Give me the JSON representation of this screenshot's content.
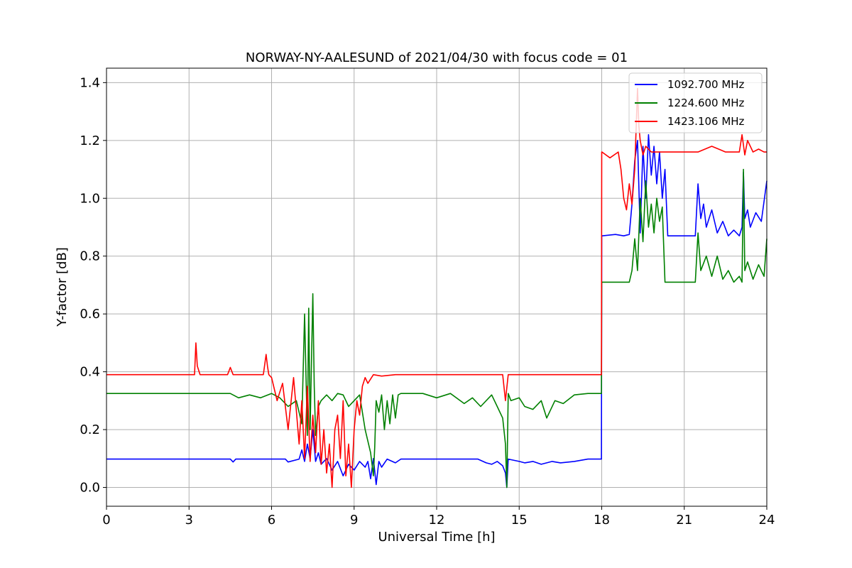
{
  "chart_data": {
    "type": "line",
    "title": "NORWAY-NY-AALESUND of 2021/04/30 with focus code = 01",
    "xlabel": "Universal Time [h]",
    "ylabel": "Y-factor [dB]",
    "xlim": [
      0,
      24
    ],
    "ylim": [
      -0.065,
      1.45
    ],
    "xticks": [
      0,
      3,
      6,
      9,
      12,
      15,
      18,
      21,
      24
    ],
    "xtick_labels": [
      "0",
      "3",
      "6",
      "9",
      "12",
      "15",
      "18",
      "21",
      "24"
    ],
    "yticks": [
      0.0,
      0.2,
      0.4,
      0.6,
      0.8,
      1.0,
      1.2,
      1.4
    ],
    "ytick_labels": [
      "0.0",
      "0.2",
      "0.4",
      "0.6",
      "0.8",
      "1.0",
      "1.2",
      "1.4"
    ],
    "grid": true,
    "legend_position": "top-right",
    "series": [
      {
        "name": "1092.700 MHz",
        "color": "#0000ff",
        "x": [
          0,
          4.5,
          4.6,
          4.7,
          6.5,
          6.6,
          7.0,
          7.1,
          7.2,
          7.3,
          7.4,
          7.5,
          7.6,
          7.7,
          7.8,
          8.0,
          8.2,
          8.4,
          8.6,
          8.8,
          9.0,
          9.2,
          9.4,
          9.5,
          9.6,
          9.7,
          9.8,
          9.9,
          10.0,
          10.2,
          10.5,
          10.7,
          11.5,
          12.0,
          13.5,
          13.8,
          14.0,
          14.2,
          14.4,
          14.5,
          14.55,
          14.6,
          15.0,
          15.2,
          15.5,
          15.8,
          16.2,
          16.5,
          17.0,
          17.5,
          17.99,
          18.0,
          18.01,
          18.5,
          18.8,
          19.0,
          19.1,
          19.2,
          19.3,
          19.4,
          19.5,
          19.6,
          19.7,
          19.8,
          19.9,
          20.0,
          20.1,
          20.2,
          20.3,
          20.4,
          20.6,
          21.0,
          21.4,
          21.5,
          21.6,
          21.7,
          21.8,
          22.0,
          22.2,
          22.4,
          22.6,
          22.8,
          23.0,
          23.1,
          23.15,
          23.2,
          23.3,
          23.4,
          23.6,
          23.8,
          24.0
        ],
        "y": [
          0.098,
          0.098,
          0.088,
          0.098,
          0.098,
          0.088,
          0.098,
          0.13,
          0.09,
          0.15,
          0.1,
          0.2,
          0.09,
          0.12,
          0.08,
          0.1,
          0.06,
          0.09,
          0.04,
          0.08,
          0.06,
          0.09,
          0.07,
          0.09,
          0.03,
          0.1,
          0.01,
          0.09,
          0.07,
          0.098,
          0.085,
          0.098,
          0.098,
          0.098,
          0.098,
          0.085,
          0.08,
          0.09,
          0.075,
          0.05,
          0.0,
          0.098,
          0.09,
          0.085,
          0.09,
          0.08,
          0.09,
          0.085,
          0.09,
          0.098,
          0.098,
          0.87,
          0.87,
          0.875,
          0.87,
          0.875,
          0.98,
          1.13,
          1.2,
          0.88,
          1.18,
          1.0,
          1.22,
          1.08,
          1.18,
          1.05,
          1.16,
          1.0,
          1.1,
          0.87,
          0.87,
          0.87,
          0.87,
          1.05,
          0.93,
          0.98,
          0.9,
          0.96,
          0.88,
          0.92,
          0.87,
          0.89,
          0.87,
          0.9,
          1.09,
          0.93,
          0.96,
          0.9,
          0.95,
          0.92,
          1.06
        ]
      },
      {
        "name": "1224.600 MHz",
        "color": "#008000",
        "x": [
          0,
          4.5,
          4.8,
          5.2,
          5.6,
          6.0,
          6.3,
          6.6,
          6.9,
          7.1,
          7.2,
          7.3,
          7.35,
          7.4,
          7.5,
          7.55,
          7.6,
          7.7,
          7.8,
          8.0,
          8.2,
          8.4,
          8.6,
          8.8,
          9.0,
          9.2,
          9.4,
          9.6,
          9.7,
          9.75,
          9.8,
          9.9,
          10.0,
          10.1,
          10.2,
          10.3,
          10.4,
          10.5,
          10.6,
          10.7,
          11.0,
          11.5,
          12.0,
          12.5,
          13.0,
          13.3,
          13.6,
          14.0,
          14.2,
          14.4,
          14.5,
          14.55,
          14.6,
          14.7,
          15.0,
          15.2,
          15.5,
          15.8,
          16.0,
          16.3,
          16.6,
          17.0,
          17.5,
          17.99,
          18.0,
          18.01,
          18.5,
          19.0,
          19.1,
          19.2,
          19.3,
          19.4,
          19.5,
          19.6,
          19.7,
          19.8,
          19.9,
          20.0,
          20.1,
          20.2,
          20.3,
          20.4,
          20.6,
          21.0,
          21.4,
          21.5,
          21.6,
          21.8,
          22.0,
          22.2,
          22.4,
          22.6,
          22.8,
          23.0,
          23.1,
          23.15,
          23.2,
          23.3,
          23.5,
          23.7,
          23.9,
          24.0
        ],
        "y": [
          0.325,
          0.325,
          0.31,
          0.32,
          0.31,
          0.325,
          0.31,
          0.28,
          0.3,
          0.22,
          0.6,
          0.18,
          0.62,
          0.2,
          0.67,
          0.35,
          0.18,
          0.28,
          0.3,
          0.32,
          0.3,
          0.325,
          0.32,
          0.28,
          0.3,
          0.32,
          0.2,
          0.12,
          0.04,
          0.14,
          0.3,
          0.26,
          0.32,
          0.2,
          0.3,
          0.22,
          0.32,
          0.24,
          0.32,
          0.325,
          0.325,
          0.325,
          0.31,
          0.325,
          0.29,
          0.31,
          0.28,
          0.32,
          0.28,
          0.24,
          0.15,
          0.0,
          0.325,
          0.3,
          0.31,
          0.28,
          0.27,
          0.3,
          0.24,
          0.3,
          0.29,
          0.32,
          0.325,
          0.325,
          0.71,
          0.71,
          0.71,
          0.71,
          0.75,
          0.86,
          0.75,
          1.0,
          0.85,
          1.06,
          0.9,
          0.98,
          0.88,
          1.0,
          0.92,
          0.97,
          0.71,
          0.71,
          0.71,
          0.71,
          0.71,
          0.88,
          0.75,
          0.8,
          0.73,
          0.8,
          0.72,
          0.75,
          0.71,
          0.73,
          0.71,
          1.1,
          0.75,
          0.78,
          0.72,
          0.77,
          0.73,
          0.86
        ]
      },
      {
        "name": "1423.106 MHz",
        "color": "#ff0000",
        "x": [
          0,
          1.0,
          2.0,
          3.0,
          3.2,
          3.25,
          3.3,
          3.4,
          3.6,
          4.0,
          4.4,
          4.5,
          4.6,
          4.7,
          5.0,
          5.5,
          5.7,
          5.8,
          5.85,
          5.9,
          6.0,
          6.2,
          6.4,
          6.6,
          6.8,
          7.0,
          7.1,
          7.2,
          7.3,
          7.4,
          7.5,
          7.6,
          7.7,
          7.8,
          7.9,
          8.0,
          8.1,
          8.2,
          8.3,
          8.4,
          8.5,
          8.6,
          8.7,
          8.8,
          8.9,
          9.0,
          9.1,
          9.2,
          9.3,
          9.4,
          9.5,
          9.7,
          10.0,
          10.5,
          11.0,
          12.0,
          13.0,
          14.0,
          14.4,
          14.5,
          14.6,
          14.8,
          15.0,
          16.0,
          17.0,
          17.9,
          17.99,
          18.0,
          18.01,
          18.3,
          18.6,
          18.7,
          18.8,
          18.9,
          19.0,
          19.1,
          19.2,
          19.3,
          19.35,
          19.4,
          19.5,
          19.6,
          19.8,
          20.0,
          20.5,
          21.0,
          21.5,
          22.0,
          22.5,
          23.0,
          23.1,
          23.2,
          23.3,
          23.5,
          23.7,
          23.9,
          24.0
        ],
        "y": [
          0.39,
          0.39,
          0.39,
          0.39,
          0.39,
          0.5,
          0.42,
          0.39,
          0.39,
          0.39,
          0.39,
          0.415,
          0.39,
          0.39,
          0.39,
          0.39,
          0.39,
          0.46,
          0.42,
          0.39,
          0.38,
          0.3,
          0.36,
          0.2,
          0.38,
          0.15,
          0.3,
          0.1,
          0.35,
          0.09,
          0.25,
          0.12,
          0.3,
          0.08,
          0.2,
          0.05,
          0.15,
          0.0,
          0.2,
          0.25,
          0.1,
          0.3,
          0.04,
          0.15,
          0.0,
          0.2,
          0.3,
          0.25,
          0.35,
          0.38,
          0.36,
          0.39,
          0.385,
          0.39,
          0.39,
          0.39,
          0.39,
          0.39,
          0.39,
          0.3,
          0.39,
          0.39,
          0.39,
          0.39,
          0.39,
          0.39,
          0.39,
          1.16,
          1.16,
          1.14,
          1.16,
          1.1,
          1.0,
          0.96,
          1.05,
          0.98,
          1.1,
          1.38,
          1.25,
          1.2,
          1.15,
          1.18,
          1.16,
          1.16,
          1.16,
          1.16,
          1.16,
          1.18,
          1.16,
          1.16,
          1.22,
          1.15,
          1.2,
          1.16,
          1.17,
          1.16,
          1.16
        ]
      }
    ]
  }
}
